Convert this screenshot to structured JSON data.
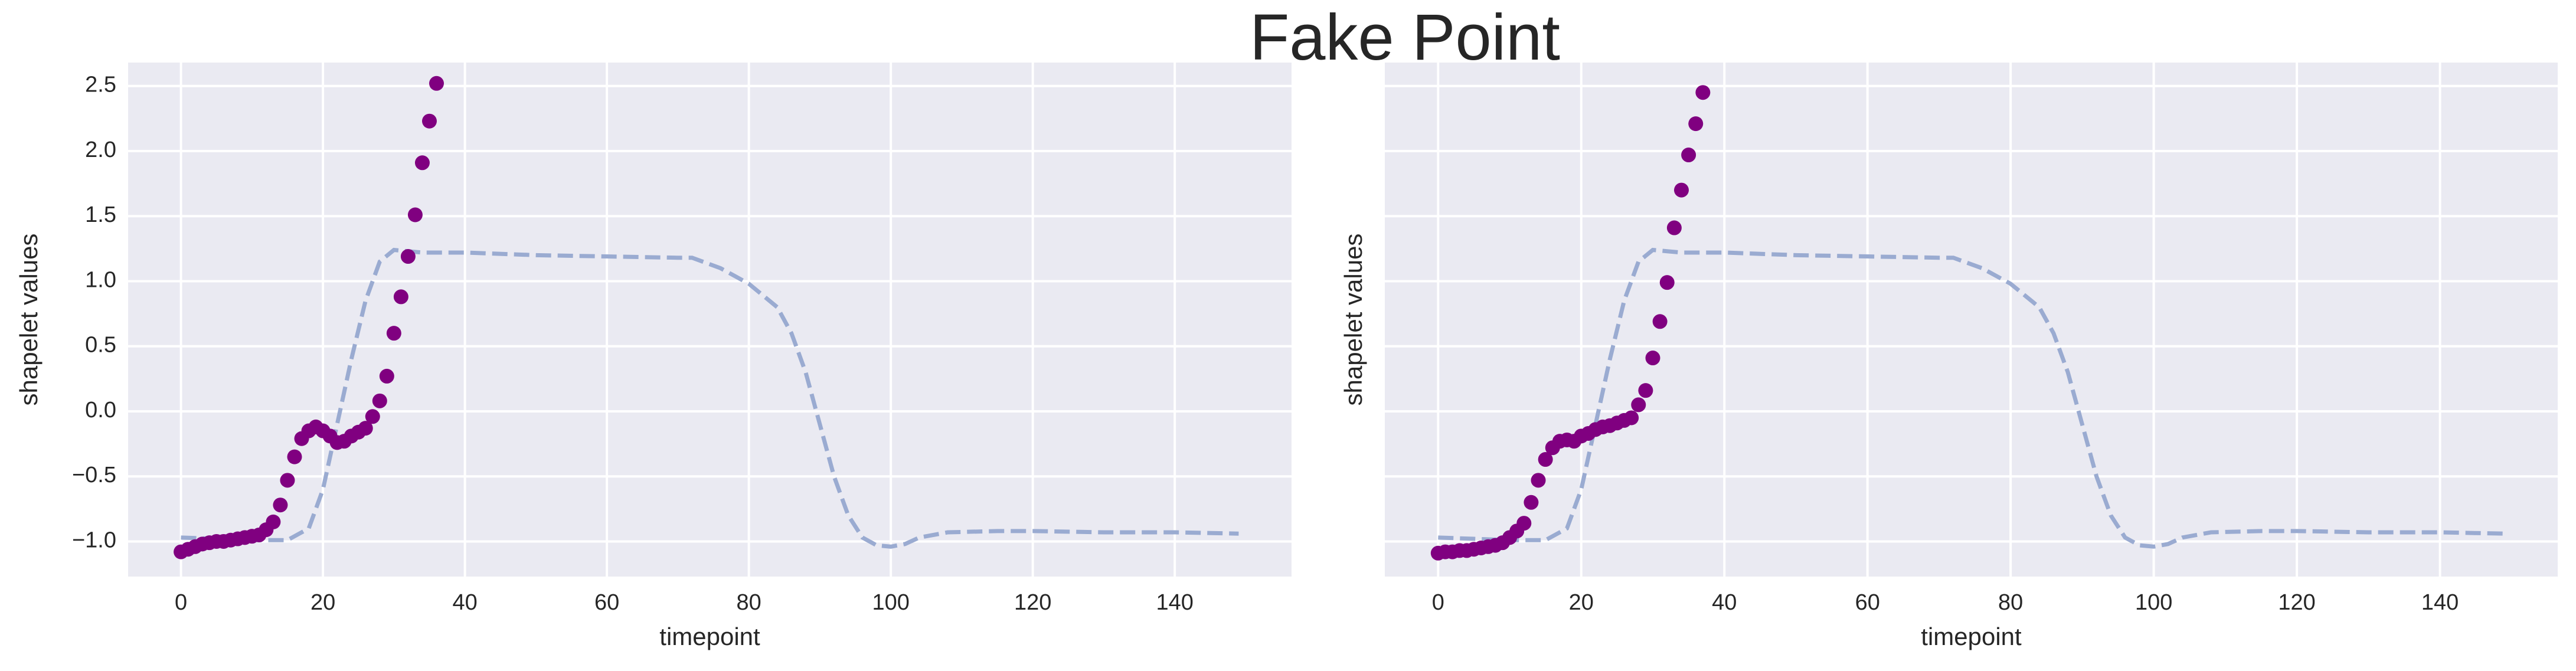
{
  "title": "Fake Point",
  "chart_data": [
    {
      "type": "scatter",
      "x_label": "timepoint",
      "y_label": "shapelet values",
      "xlim": [
        -7.45,
        156.45
      ],
      "ylim": [
        -1.27,
        2.68
      ],
      "xticks": [
        0,
        20,
        40,
        60,
        80,
        100,
        120,
        140
      ],
      "yticks": [
        {
          "value": -1,
          "label": "−1.0"
        },
        {
          "value": -0.5,
          "label": "−0.5"
        },
        {
          "value": 0,
          "label": "0.0"
        },
        0.5,
        {
          "value": 1,
          "label": "1.0"
        },
        1.5,
        {
          "value": 2,
          "label": "2.0"
        },
        2.5
      ],
      "ytick_labels": true,
      "grid": true,
      "series": [
        {
          "kind": "line",
          "style": "dashed",
          "color": "#9aabd1",
          "x": [
            0,
            5,
            10,
            15,
            18,
            20,
            22,
            24,
            26,
            28,
            30,
            32,
            34,
            40,
            50,
            60,
            70,
            72,
            76,
            80,
            84,
            86,
            88,
            90,
            92,
            94,
            96,
            98,
            100,
            102,
            104,
            108,
            115,
            120,
            130,
            140,
            149
          ],
          "values": [
            -0.97,
            -0.98,
            -0.99,
            -0.99,
            -0.9,
            -0.6,
            -0.1,
            0.4,
            0.85,
            1.15,
            1.24,
            1.23,
            1.22,
            1.22,
            1.2,
            1.19,
            1.18,
            1.18,
            1.1,
            0.98,
            0.8,
            0.6,
            0.3,
            -0.1,
            -0.5,
            -0.8,
            -0.97,
            -1.03,
            -1.04,
            -1.02,
            -0.97,
            -0.93,
            -0.92,
            -0.92,
            -0.93,
            -0.93,
            -0.94
          ]
        },
        {
          "kind": "points",
          "color": "#800080",
          "x": [
            0,
            1,
            2,
            3,
            4,
            5,
            6,
            7,
            8,
            9,
            10,
            11,
            12,
            13,
            14,
            15,
            16,
            17,
            18,
            19,
            20,
            21,
            22,
            23,
            24,
            25,
            26,
            27,
            28,
            29,
            30,
            31,
            32,
            33,
            34,
            35,
            36
          ],
          "values": [
            -1.08,
            -1.06,
            -1.04,
            -1.02,
            -1.01,
            -1.0,
            -1.0,
            -0.99,
            -0.98,
            -0.97,
            -0.96,
            -0.95,
            -0.91,
            -0.85,
            -0.72,
            -0.53,
            -0.35,
            -0.21,
            -0.15,
            -0.12,
            -0.15,
            -0.19,
            -0.24,
            -0.23,
            -0.19,
            -0.16,
            -0.13,
            -0.04,
            0.08,
            0.27,
            0.6,
            0.88,
            1.19,
            1.51,
            1.91,
            2.23,
            2.52
          ]
        }
      ]
    },
    {
      "type": "scatter",
      "x_label": "timepoint",
      "y_label": "shapelet values",
      "xlim": [
        -7.45,
        156.45
      ],
      "ylim": [
        -1.27,
        2.68
      ],
      "xticks": [
        0,
        20,
        40,
        60,
        80,
        100,
        120,
        140
      ],
      "yticks": [
        -1,
        -0.5,
        0,
        0.5,
        1,
        1.5,
        2,
        2.5
      ],
      "ytick_labels": false,
      "grid": true,
      "series": [
        {
          "kind": "line",
          "style": "dashed",
          "color": "#9aabd1",
          "x": [
            0,
            5,
            10,
            15,
            18,
            20,
            22,
            24,
            26,
            28,
            30,
            32,
            34,
            40,
            50,
            60,
            70,
            72,
            76,
            80,
            84,
            86,
            88,
            90,
            92,
            94,
            96,
            98,
            100,
            102,
            104,
            108,
            115,
            120,
            130,
            140,
            149
          ],
          "values": [
            -0.97,
            -0.98,
            -0.99,
            -0.99,
            -0.9,
            -0.6,
            -0.1,
            0.4,
            0.85,
            1.15,
            1.24,
            1.23,
            1.22,
            1.22,
            1.2,
            1.19,
            1.18,
            1.18,
            1.1,
            0.98,
            0.8,
            0.6,
            0.3,
            -0.1,
            -0.5,
            -0.8,
            -0.97,
            -1.03,
            -1.04,
            -1.02,
            -0.97,
            -0.93,
            -0.92,
            -0.92,
            -0.93,
            -0.93,
            -0.94
          ]
        },
        {
          "kind": "points",
          "color": "#800080",
          "x": [
            0,
            1,
            2,
            3,
            4,
            5,
            6,
            7,
            8,
            9,
            10,
            11,
            12,
            13,
            14,
            15,
            16,
            17,
            18,
            19,
            20,
            21,
            22,
            23,
            24,
            25,
            26,
            27,
            28,
            29,
            30,
            31,
            32,
            33,
            34,
            35,
            36,
            37
          ],
          "values": [
            -1.09,
            -1.08,
            -1.08,
            -1.07,
            -1.07,
            -1.06,
            -1.05,
            -1.04,
            -1.03,
            -1.01,
            -0.97,
            -0.92,
            -0.86,
            -0.7,
            -0.53,
            -0.37,
            -0.28,
            -0.23,
            -0.22,
            -0.23,
            -0.19,
            -0.17,
            -0.14,
            -0.12,
            -0.11,
            -0.09,
            -0.07,
            -0.05,
            0.05,
            0.16,
            0.41,
            0.69,
            0.99,
            1.41,
            1.7,
            1.97,
            2.21,
            2.45
          ]
        }
      ]
    }
  ]
}
